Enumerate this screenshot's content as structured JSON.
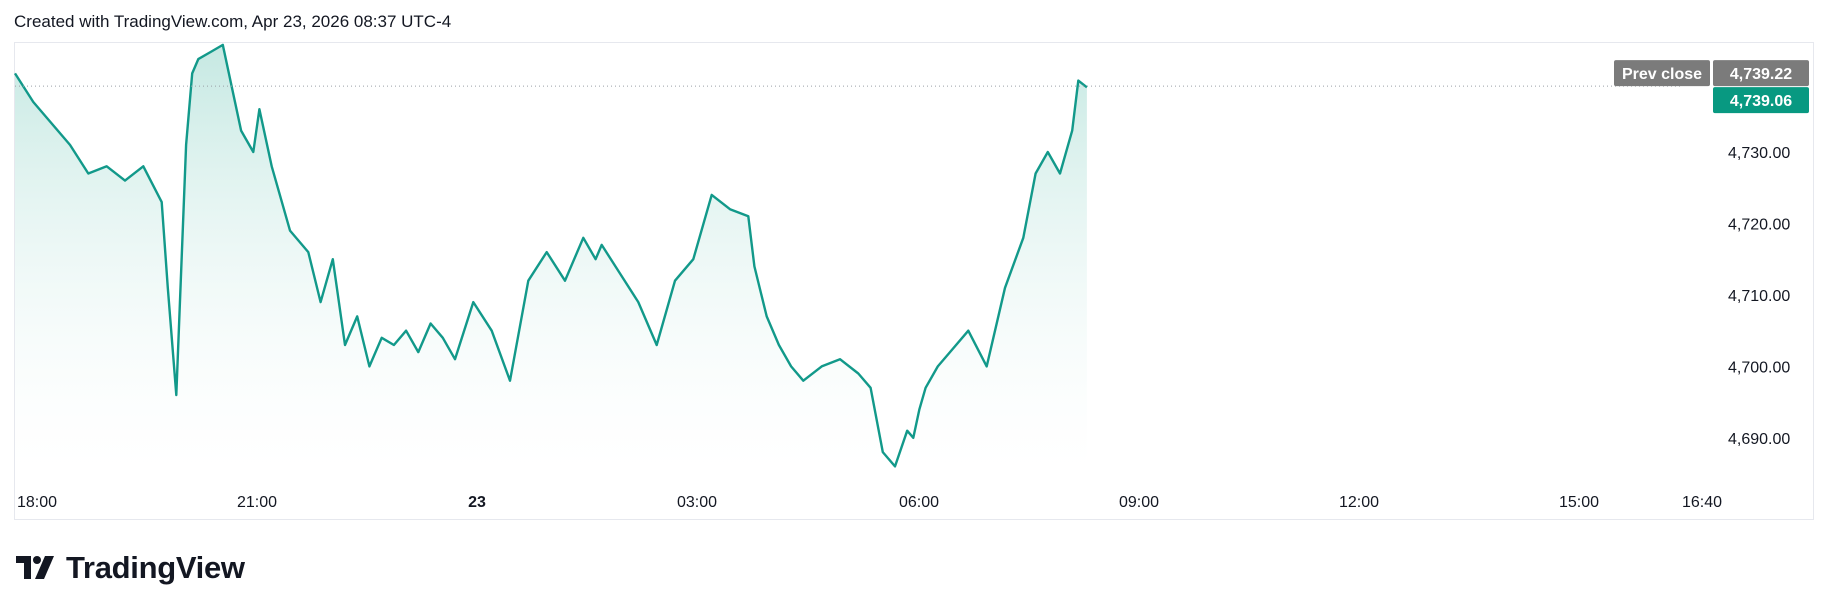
{
  "header": {
    "created_text": "Created with TradingView.com, Apr 23, 2026 08:37 UTC-4"
  },
  "brand": {
    "name": "TradingView",
    "logo_icon": "tradingview-logo-icon"
  },
  "colors": {
    "line": "#12998a",
    "area_top": "#bfe6df",
    "area_bottom": "#ffffff",
    "prev_close_bg": "#7b7b7b",
    "last_price_bg": "#089981",
    "grid": "#e6e8ee"
  },
  "chart_data": {
    "type": "area",
    "title": "",
    "xlabel": "",
    "ylabel": "",
    "ylim": [
      4685.5,
      4745.4
    ],
    "y_ticks": [
      "4,690.00",
      "4,700.00",
      "4,710.00",
      "4,720.00",
      "4,730.00"
    ],
    "x_ticks": [
      "18:00",
      "21:00",
      "23",
      "03:00",
      "06:00",
      "09:00",
      "12:00",
      "15:00",
      "16:40"
    ],
    "prev_close": {
      "label": "Prev close",
      "value": 4739.22,
      "value_text": "4,739.22"
    },
    "last_price": {
      "value": 4739.06,
      "value_text": "4,739.06"
    },
    "series": [
      {
        "x": [
          "18:00",
          "18:15",
          "18:30",
          "18:45",
          "19:00",
          "19:15",
          "19:30",
          "19:45",
          "20:00",
          "20:05",
          "20:12",
          "20:20",
          "20:25",
          "20:30",
          "20:40",
          "20:50",
          "21:00",
          "21:05",
          "21:15",
          "21:20",
          "21:30",
          "21:45",
          "22:00",
          "22:10",
          "22:20",
          "22:30",
          "22:40",
          "22:50",
          "23:00",
          "23:10",
          "23:20",
          "23:30",
          "23:40",
          "23:50",
          "00:00",
          "00:15",
          "00:30",
          "00:45",
          "01:00",
          "01:15",
          "01:30",
          "01:45",
          "01:55",
          "02:00",
          "02:15",
          "02:30",
          "02:45",
          "03:00",
          "03:15",
          "03:30",
          "03:45",
          "04:00",
          "04:05",
          "04:15",
          "04:25",
          "04:35",
          "04:45",
          "05:00",
          "05:15",
          "05:30",
          "05:40",
          "05:50",
          "06:00",
          "06:10",
          "06:15",
          "06:20",
          "06:25",
          "06:35",
          "06:45",
          "07:00",
          "07:15",
          "07:30",
          "07:45",
          "07:55",
          "08:05",
          "08:15",
          "08:25",
          "08:30",
          "08:37"
        ],
        "y": [
          4741,
          4737,
          4734,
          4731,
          4727,
          4728,
          4726,
          4728,
          4723,
          4711,
          4696,
          4731,
          4741,
          4743,
          4744,
          4745,
          4737,
          4733,
          4730,
          4736,
          4728,
          4719,
          4716,
          4709,
          4715,
          4703,
          4707,
          4700,
          4704,
          4703,
          4705,
          4702,
          4706,
          4704,
          4701,
          4709,
          4705,
          4698,
          4712,
          4716,
          4712,
          4718,
          4715,
          4717,
          4713,
          4709,
          4703,
          4712,
          4715,
          4724,
          4722,
          4721,
          4714,
          4707,
          4703,
          4700,
          4698,
          4700,
          4701,
          4699,
          4697,
          4688,
          4686,
          4691,
          4690,
          4694,
          4697,
          4700,
          4702,
          4705,
          4700,
          4711,
          4718,
          4727,
          4730,
          4727,
          4733,
          4740,
          4739.06
        ]
      }
    ],
    "grid": false,
    "legend": "none"
  }
}
